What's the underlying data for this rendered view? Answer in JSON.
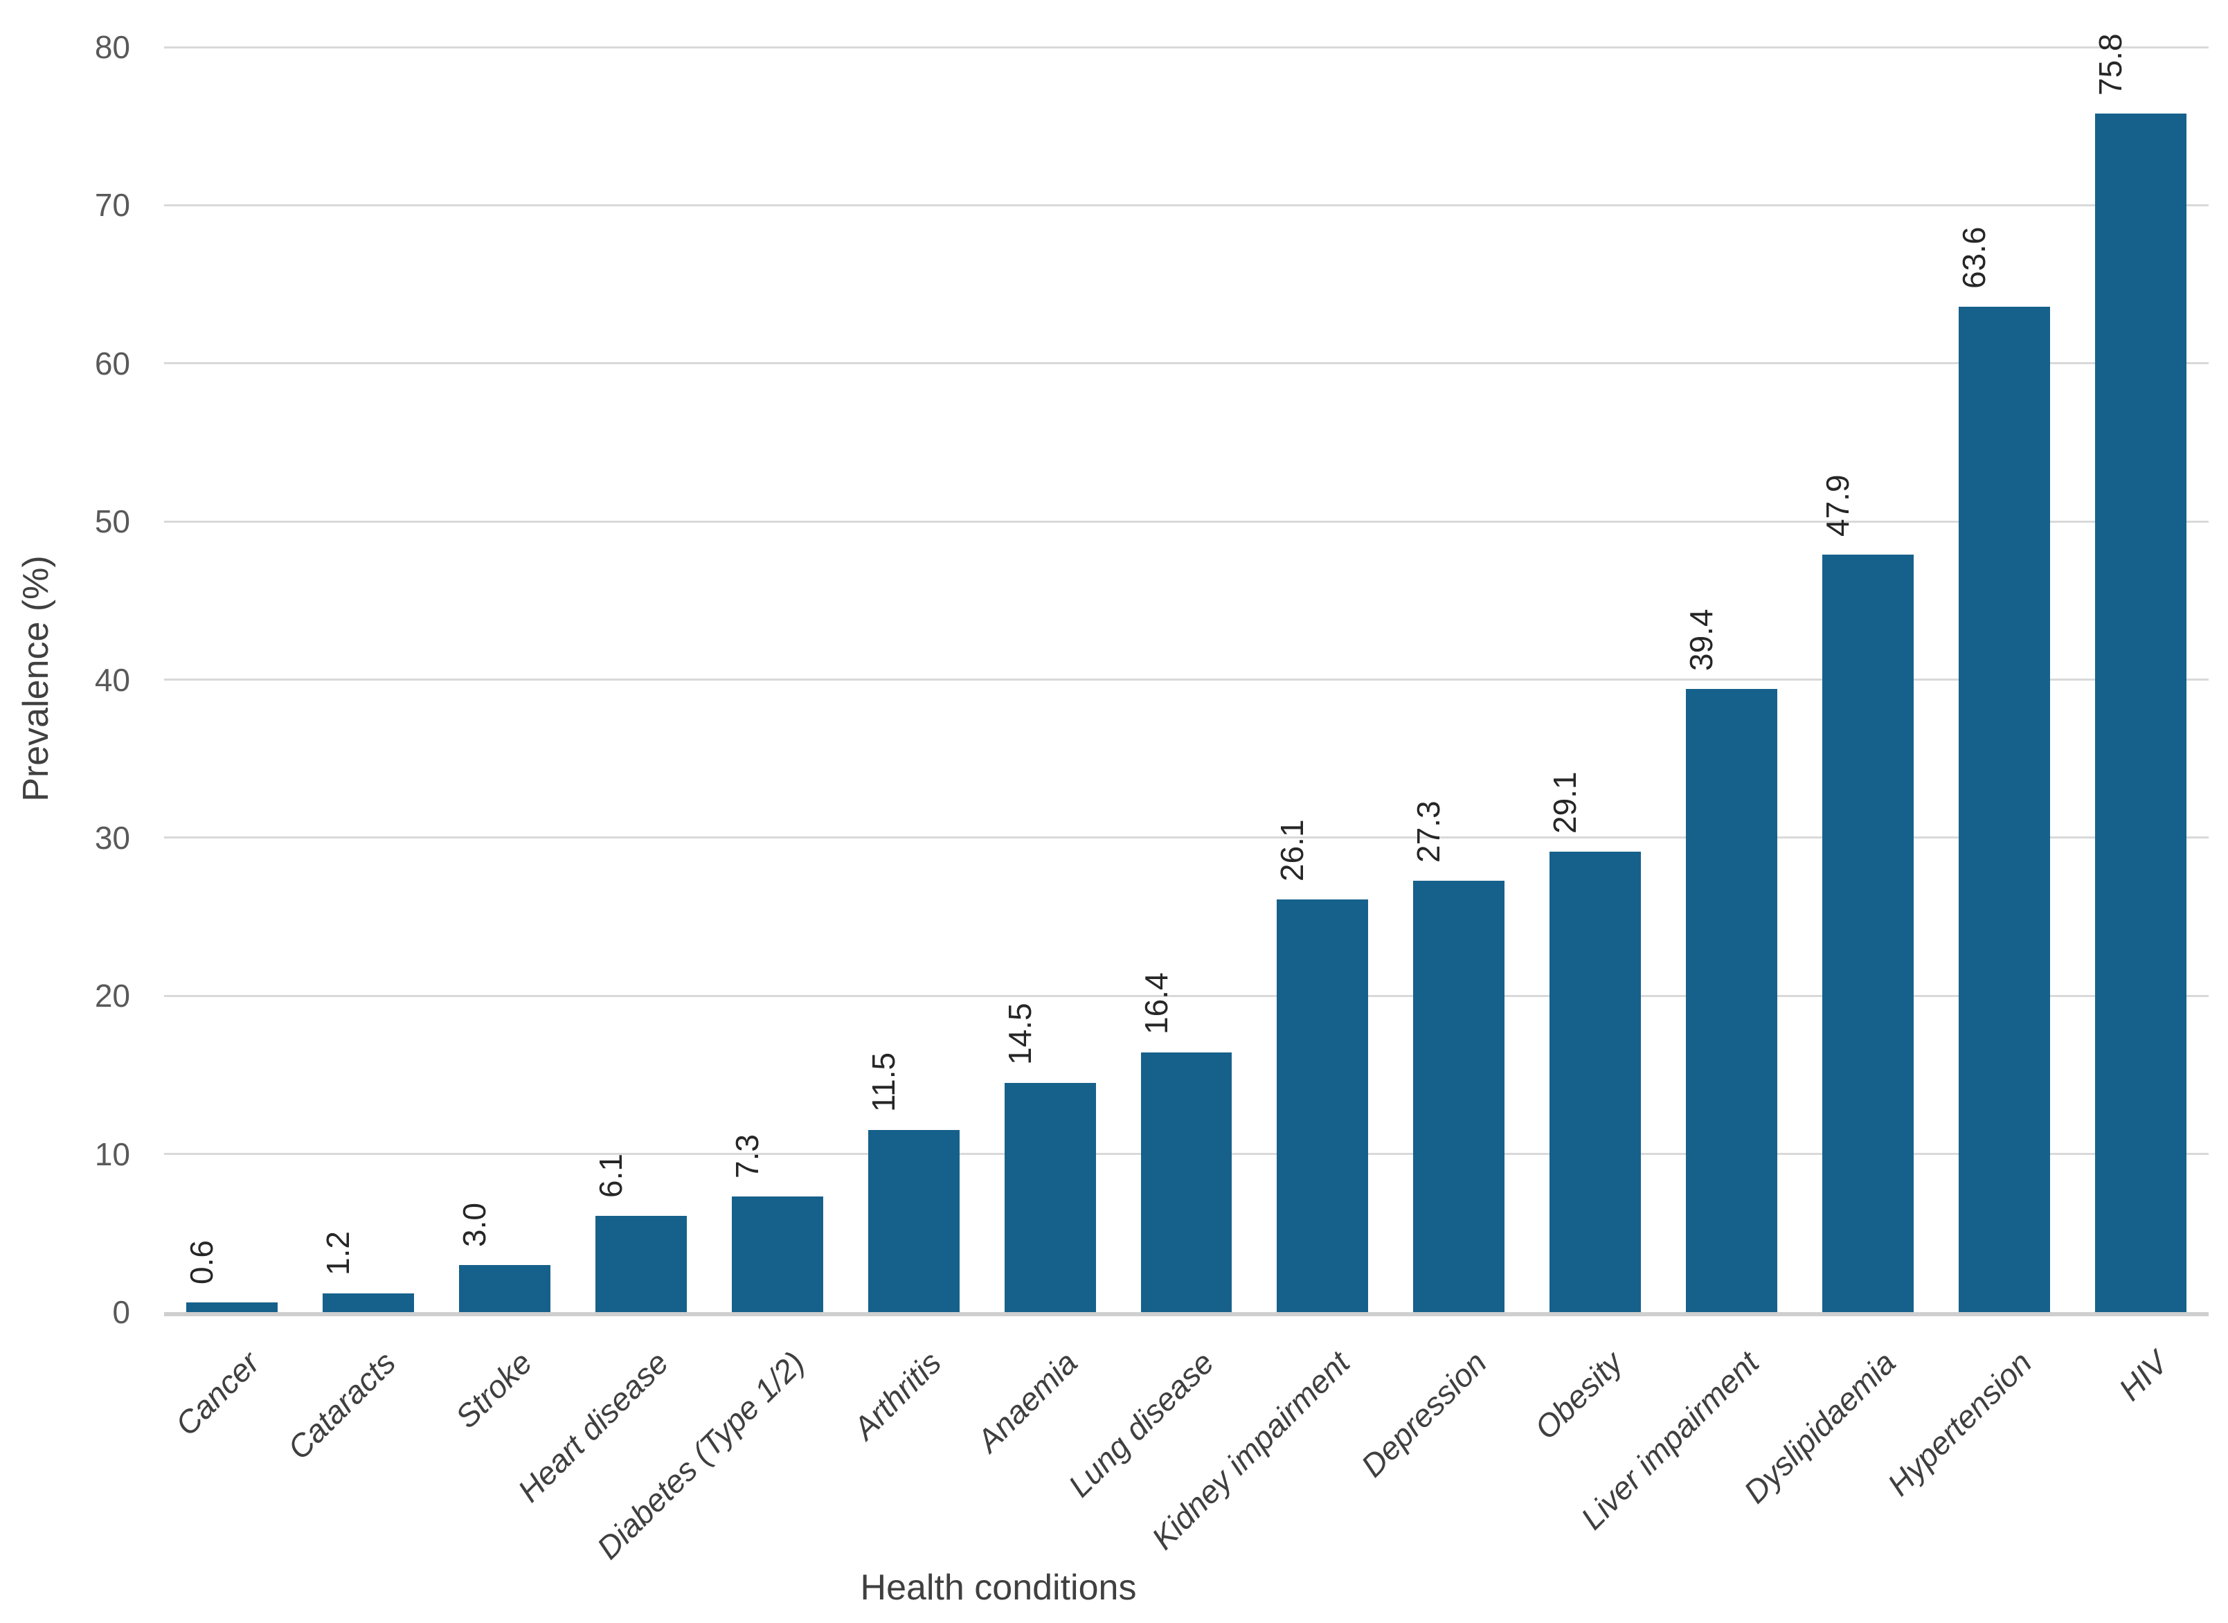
{
  "chart_data": {
    "type": "bar",
    "title": "",
    "xlabel": "Health conditions",
    "ylabel": "Prevalence (%)",
    "categories": [
      "Cancer",
      "Cataracts",
      "Stroke",
      "Heart disease",
      "Diabetes (Type 1/2)",
      "Arthritis",
      "Anaemia",
      "Lung disease",
      "Kidney impairment",
      "Depression",
      "Obesity",
      "Liver impairment",
      "Dyslipidaemia",
      "Hypertension",
      "HIV"
    ],
    "values": [
      0.6,
      1.2,
      3.0,
      6.1,
      7.3,
      11.5,
      14.5,
      16.4,
      26.1,
      27.3,
      29.1,
      39.4,
      47.9,
      63.6,
      75.8
    ],
    "value_labels": [
      "0.6",
      "1.2",
      "3.0",
      "6.1",
      "7.3",
      "11.5",
      "14.5",
      "16.4",
      "26.1",
      "27.3",
      "29.1",
      "39.4",
      "47.9",
      "63.6",
      "75.8"
    ],
    "ylim": [
      0,
      80
    ],
    "ytick_interval": 10,
    "yticks": [
      "0",
      "10",
      "20",
      "30",
      "40",
      "50",
      "60",
      "70",
      "80"
    ],
    "grid": "horizontal",
    "legend": "none",
    "category_label_rotation_deg": 45,
    "value_label_rotation_deg": 90,
    "bar_color": "#16618B",
    "gridline_color": "#D9D9D9",
    "axisline_color": "#CFCFCF",
    "ytick_label_color": "#595959",
    "category_label_color": "#3F3F3F",
    "value_label_color": "#262626",
    "axis_title_color": "#404040",
    "background_color": "#FFFFFF"
  }
}
